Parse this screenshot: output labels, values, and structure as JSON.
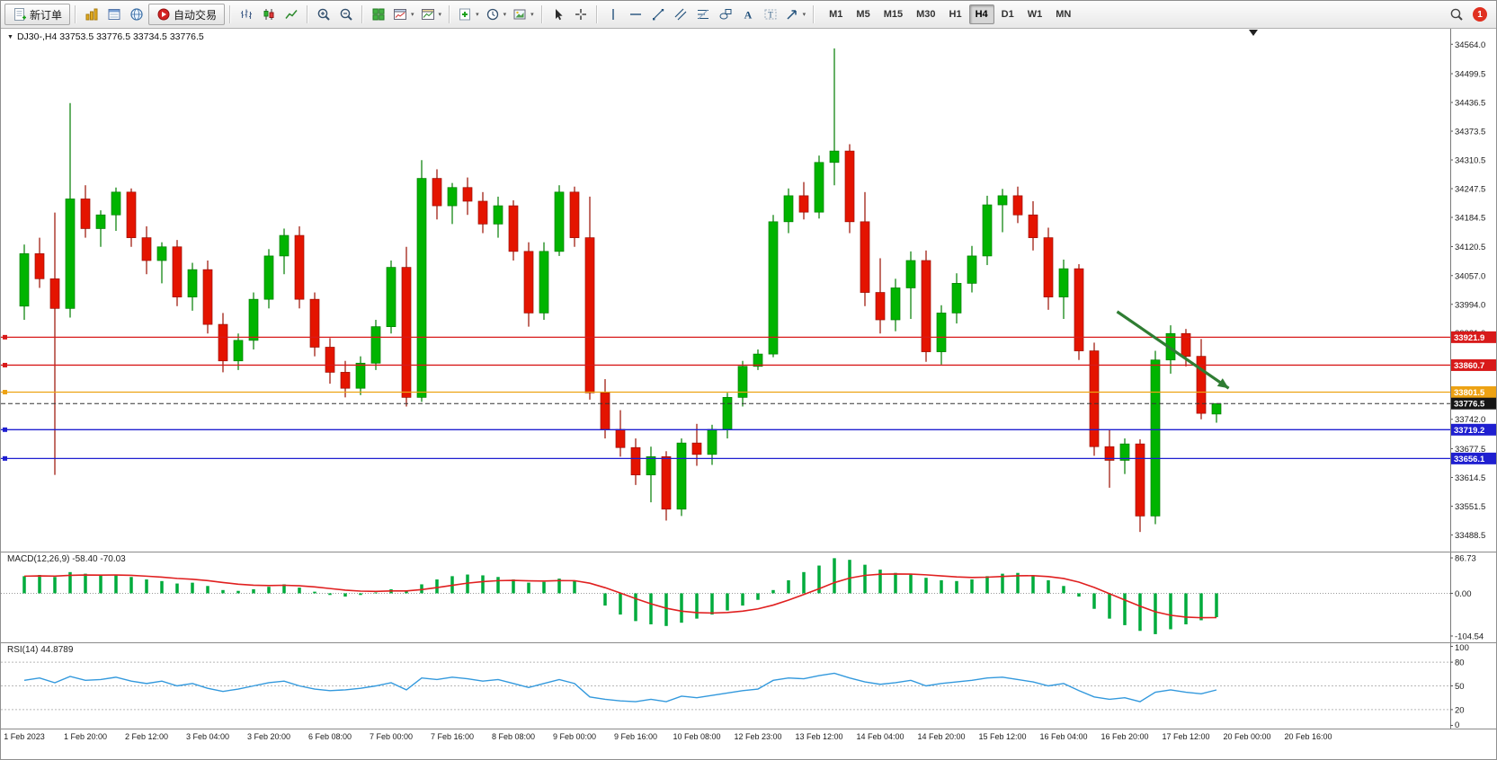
{
  "toolbar": {
    "new_order_label": "新订单",
    "auto_trading_label": "自动交易",
    "timeframes": [
      "M1",
      "M5",
      "M15",
      "M30",
      "H1",
      "H4",
      "D1",
      "W1",
      "MN"
    ],
    "active_timeframe": "H4",
    "notification_count": "1"
  },
  "chart": {
    "title": "DJ30-,H4 33753.5 33776.5 33734.5 33776.5",
    "price_axis": {
      "max": 34600,
      "min": 33452,
      "labels": [
        34564.0,
        34499.5,
        34436.5,
        34373.5,
        34310.5,
        34247.5,
        34184.5,
        34120.5,
        34057.0,
        33994.0,
        33931.0,
        33742.0,
        33677.5,
        33614.5,
        33551.5,
        33488.5
      ]
    },
    "colors": {
      "up": "#00b400",
      "up_edge": "#007d00",
      "down": "#e41400",
      "down_edge": "#9a0e00"
    },
    "hlines": [
      {
        "price": 33921.9,
        "label": "33921.9",
        "color": "#d81a1a"
      },
      {
        "price": 33860.7,
        "label": "33860.7",
        "color": "#d81a1a"
      },
      {
        "price": 33801.5,
        "label": "33801.5",
        "color": "#eda213"
      },
      {
        "price": 33719.2,
        "label": "33719.2",
        "color": "#1f1fd0"
      },
      {
        "price": 33656.1,
        "label": "33656.1",
        "color": "#1f1fd0"
      }
    ],
    "current_price": {
      "price": 33776.5,
      "label": "33776.5",
      "color": "#151515"
    },
    "arrow": {
      "from": {
        "index": 71.5,
        "price": 33978
      },
      "to": {
        "index": 78.8,
        "price": 33810
      },
      "color": "#2f7d33"
    },
    "candles": [
      [
        33990,
        34125,
        33960,
        34105
      ],
      [
        34105,
        34140,
        34030,
        34050
      ],
      [
        34050,
        34195,
        33620,
        33985
      ],
      [
        33985,
        34435,
        33965,
        34225
      ],
      [
        34225,
        34255,
        34140,
        34160
      ],
      [
        34160,
        34200,
        34120,
        34190
      ],
      [
        34190,
        34250,
        34155,
        34240
      ],
      [
        34240,
        34248,
        34120,
        34140
      ],
      [
        34140,
        34165,
        34060,
        34090
      ],
      [
        34090,
        34130,
        34040,
        34120
      ],
      [
        34120,
        34135,
        33990,
        34010
      ],
      [
        34010,
        34085,
        33980,
        34070
      ],
      [
        34070,
        34090,
        33930,
        33950
      ],
      [
        33950,
        33975,
        33845,
        33870
      ],
      [
        33870,
        33930,
        33850,
        33915
      ],
      [
        33915,
        34020,
        33895,
        34005
      ],
      [
        34005,
        34115,
        33985,
        34100
      ],
      [
        34100,
        34160,
        34060,
        34145
      ],
      [
        34145,
        34165,
        33985,
        34005
      ],
      [
        34005,
        34020,
        33880,
        33900
      ],
      [
        33900,
        33920,
        33820,
        33845
      ],
      [
        33845,
        33870,
        33790,
        33810
      ],
      [
        33810,
        33880,
        33795,
        33865
      ],
      [
        33865,
        33960,
        33850,
        33945
      ],
      [
        33945,
        34090,
        33930,
        34075
      ],
      [
        34075,
        34120,
        33770,
        33790
      ],
      [
        33790,
        34310,
        33780,
        34270
      ],
      [
        34270,
        34290,
        34180,
        34210
      ],
      [
        34210,
        34260,
        34170,
        34250
      ],
      [
        34250,
        34272,
        34190,
        34220
      ],
      [
        34220,
        34240,
        34150,
        34170
      ],
      [
        34170,
        34230,
        34140,
        34210
      ],
      [
        34210,
        34222,
        34090,
        34110
      ],
      [
        34110,
        34130,
        33945,
        33975
      ],
      [
        33975,
        34130,
        33960,
        34110
      ],
      [
        34110,
        34255,
        34100,
        34240
      ],
      [
        34240,
        34252,
        34120,
        34140
      ],
      [
        34140,
        34230,
        33785,
        33800
      ],
      [
        33800,
        33830,
        33700,
        33720
      ],
      [
        33720,
        33762,
        33660,
        33680
      ],
      [
        33680,
        33700,
        33598,
        33620
      ],
      [
        33620,
        33682,
        33560,
        33660
      ],
      [
        33660,
        33672,
        33520,
        33545
      ],
      [
        33545,
        33700,
        33530,
        33690
      ],
      [
        33690,
        33732,
        33640,
        33665
      ],
      [
        33665,
        33730,
        33642,
        33720
      ],
      [
        33720,
        33800,
        33700,
        33790
      ],
      [
        33790,
        33870,
        33770,
        33858
      ],
      [
        33858,
        33895,
        33850,
        33885
      ],
      [
        33885,
        34190,
        33878,
        34175
      ],
      [
        34175,
        34248,
        34150,
        34232
      ],
      [
        34232,
        34262,
        34180,
        34196
      ],
      [
        34196,
        34320,
        34182,
        34305
      ],
      [
        34305,
        34555,
        34255,
        34330
      ],
      [
        34330,
        34345,
        34150,
        34175
      ],
      [
        34175,
        34240,
        33990,
        34020
      ],
      [
        34020,
        34095,
        33930,
        33960
      ],
      [
        33960,
        34050,
        33935,
        34030
      ],
      [
        34030,
        34110,
        33962,
        34090
      ],
      [
        34090,
        34112,
        33868,
        33890
      ],
      [
        33890,
        33992,
        33862,
        33975
      ],
      [
        33975,
        34062,
        33952,
        34040
      ],
      [
        34040,
        34122,
        34020,
        34100
      ],
      [
        34100,
        34232,
        34080,
        34212
      ],
      [
        34212,
        34247,
        34152,
        34232
      ],
      [
        34232,
        34252,
        34172,
        34190
      ],
      [
        34190,
        34220,
        34112,
        34140
      ],
      [
        34140,
        34162,
        33982,
        34010
      ],
      [
        34010,
        34092,
        33962,
        34072
      ],
      [
        34072,
        34082,
        33872,
        33892
      ],
      [
        33892,
        33910,
        33662,
        33682
      ],
      [
        33682,
        33720,
        33592,
        33652
      ],
      [
        33652,
        33700,
        33622,
        33688
      ],
      [
        33688,
        33698,
        33495,
        33530
      ],
      [
        33530,
        33892,
        33512,
        33872
      ],
      [
        33872,
        33948,
        33842,
        33930
      ],
      [
        33930,
        33940,
        33858,
        33880
      ],
      [
        33880,
        33918,
        33742,
        33755
      ],
      [
        33753.5,
        33776.5,
        33734.5,
        33776.5
      ]
    ],
    "time_labels": [
      "1 Feb 2023",
      "1 Feb 20:00",
      "2 Feb 12:00",
      "3 Feb 04:00",
      "3 Feb 20:00",
      "6 Feb 08:00",
      "7 Feb 00:00",
      "7 Feb 16:00",
      "8 Feb 08:00",
      "9 Feb 00:00",
      "9 Feb 16:00",
      "10 Feb 08:00",
      "12 Feb 23:00",
      "13 Feb 12:00",
      "14 Feb 04:00",
      "14 Feb 20:00",
      "15 Feb 12:00",
      "16 Feb 04:00",
      "16 Feb 20:00",
      "17 Feb 12:00",
      "20 Feb 00:00",
      "20 Feb 16:00"
    ]
  },
  "macd": {
    "label": "MACD(12,26,9) -58.40 -70.03",
    "axis_labels": [
      86.73,
      0,
      -104.54
    ],
    "axis_max": 100,
    "axis_min": -120,
    "bar_color": "#00ab3c",
    "signal_color": "#e02020",
    "values": [
      42,
      45,
      40,
      52,
      48,
      44,
      46,
      40,
      34,
      30,
      24,
      26,
      18,
      8,
      6,
      10,
      16,
      22,
      14,
      4,
      -4,
      -8,
      -4,
      2,
      10,
      6,
      22,
      34,
      42,
      46,
      44,
      40,
      34,
      26,
      28,
      36,
      30,
      0,
      -30,
      -52,
      -68,
      -76,
      -80,
      -72,
      -62,
      -52,
      -42,
      -30,
      -16,
      8,
      32,
      52,
      68,
      86,
      82,
      70,
      58,
      50,
      46,
      38,
      32,
      30,
      34,
      42,
      48,
      50,
      44,
      32,
      18,
      -8,
      -38,
      -62,
      -78,
      -92,
      -100,
      -88,
      -76,
      -66,
      -58.4
    ]
  },
  "rsi": {
    "label": "RSI(14) 44.8789",
    "axis_labels": [
      100,
      80,
      50,
      20,
      0
    ],
    "levels_dashed": [
      80,
      50,
      20
    ],
    "axis_max": 104,
    "axis_min": -4,
    "line_color": "#3399dd",
    "values": [
      57,
      60,
      54,
      62,
      57,
      58,
      61,
      56,
      53,
      56,
      50,
      53,
      47,
      43,
      46,
      50,
      54,
      56,
      50,
      46,
      44,
      45,
      47,
      50,
      54,
      45,
      60,
      58,
      61,
      59,
      56,
      58,
      53,
      48,
      53,
      58,
      53,
      36,
      33,
      31,
      30,
      33,
      30,
      37,
      35,
      38,
      41,
      44,
      46,
      57,
      60,
      59,
      63,
      66,
      60,
      55,
      52,
      54,
      57,
      50,
      53,
      55,
      57,
      60,
      61,
      58,
      55,
      50,
      53,
      44,
      36,
      33,
      35,
      30,
      42,
      45,
      42,
      40,
      44.8789
    ]
  }
}
